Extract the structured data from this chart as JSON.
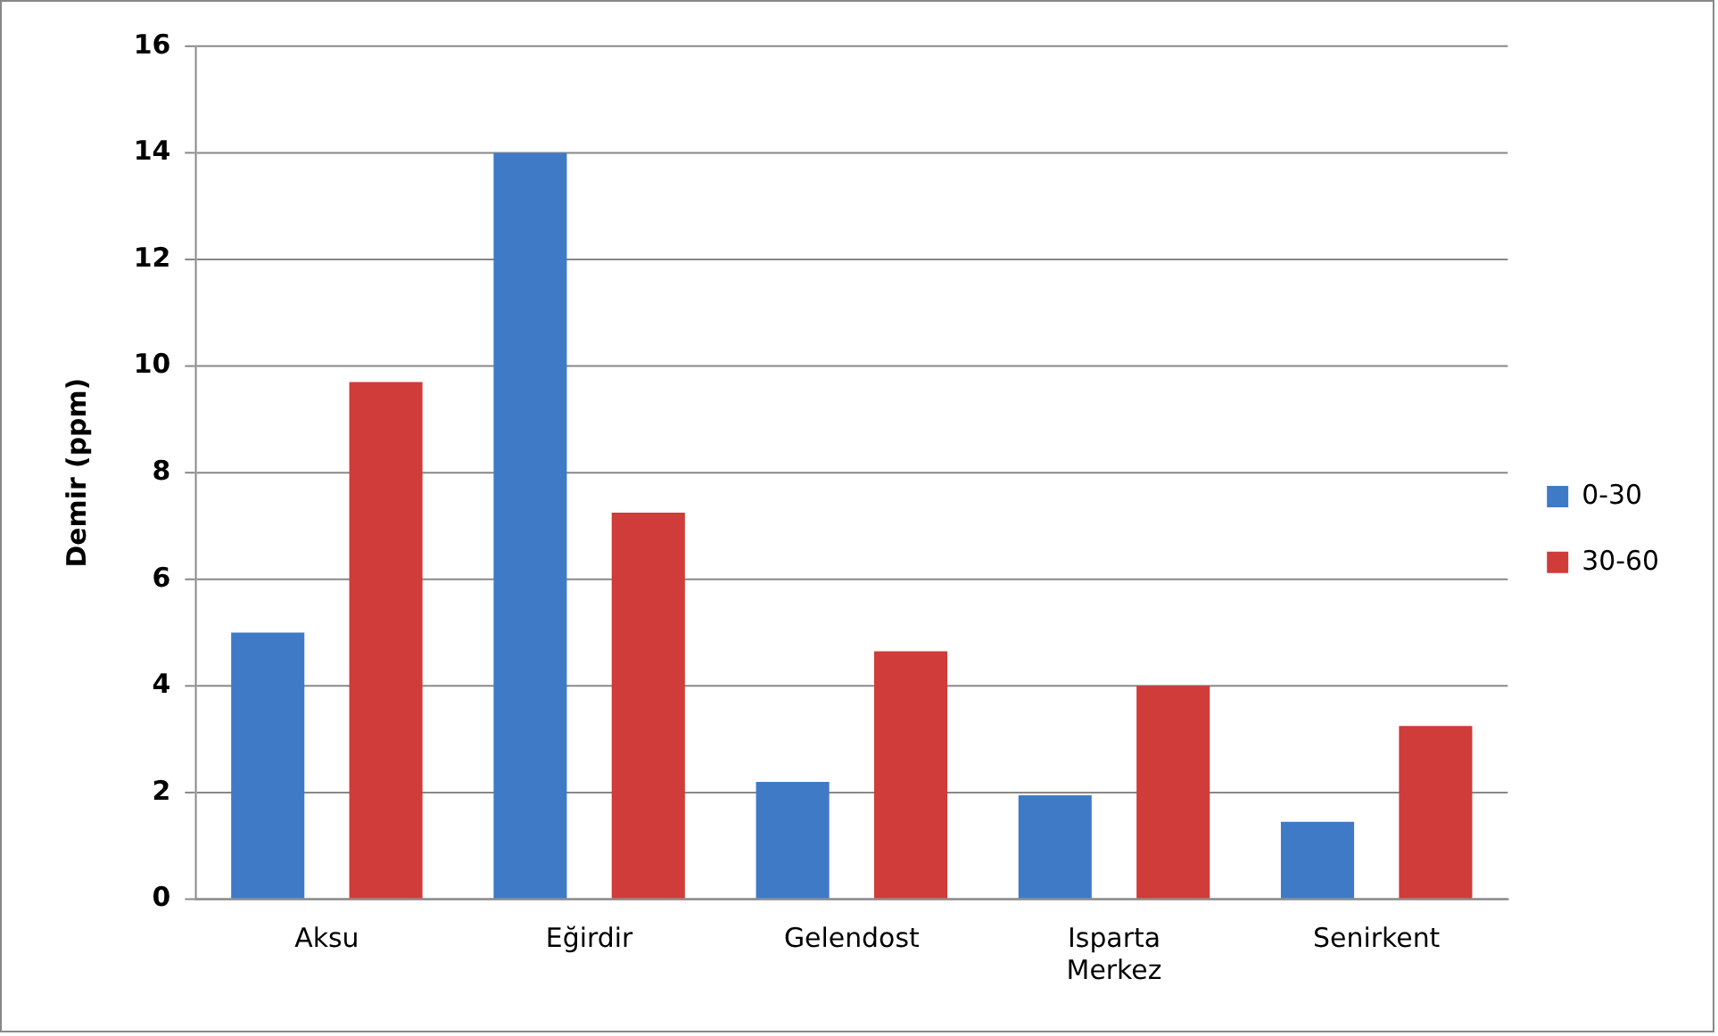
{
  "chart_data": {
    "type": "bar",
    "ylabel": "Demir (ppm)",
    "categories": [
      "Aksu",
      "Eğirdir",
      "Gelendost",
      "Isparta Merkez",
      "Senirkent"
    ],
    "series": [
      {
        "name": "0-30",
        "color": "#3f7ac6",
        "values": [
          5,
          14,
          2.2,
          1.95,
          1.45
        ]
      },
      {
        "name": "30-60",
        "color": "#cf3c3a",
        "values": [
          9.7,
          7.25,
          4.65,
          4.0,
          3.25
        ]
      }
    ],
    "ylim": [
      0,
      16
    ],
    "yticks": [
      0,
      2,
      4,
      6,
      8,
      10,
      12,
      14,
      16
    ],
    "grid": "y",
    "legend": "right"
  }
}
